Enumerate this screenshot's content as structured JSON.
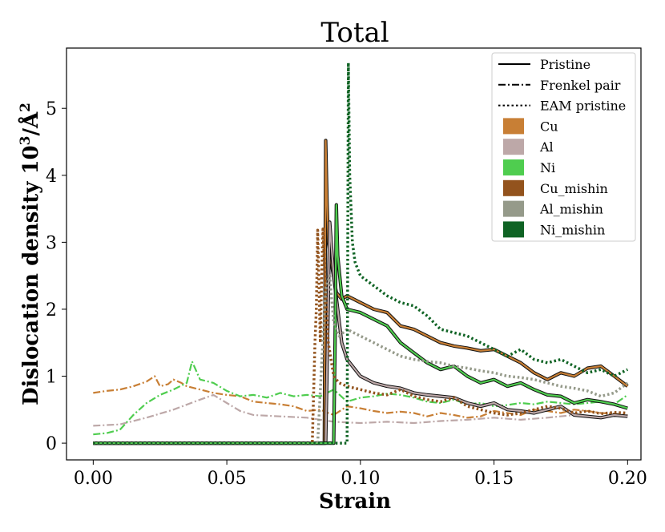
{
  "chart_data": {
    "type": "line",
    "title": "Total",
    "xlabel": "Strain",
    "ylabel": "Dislocation density 10³/Å²",
    "ylabel_base": "Dislocation density 10",
    "ylabel_exp1": "3",
    "ylabel_unit": "/Å",
    "ylabel_exp2": "2",
    "xlim": [
      -0.01,
      0.205
    ],
    "ylim": [
      -0.25,
      5.9
    ],
    "grid": false,
    "x_ticks": [
      0.0,
      0.05,
      0.1,
      0.15,
      0.2
    ],
    "x_tick_labels": [
      "0.00",
      "0.05",
      "0.10",
      "0.15",
      "0.20"
    ],
    "y_ticks": [
      0,
      1,
      2,
      3,
      4,
      5
    ],
    "y_tick_labels": [
      "0",
      "1",
      "2",
      "3",
      "4",
      "5"
    ],
    "legend_position": "top-right",
    "legend": {
      "styles": [
        {
          "label": "Pristine",
          "dash": "solid"
        },
        {
          "label": "Frenkel pair",
          "dash": "dashdot"
        },
        {
          "label": "EAM pristine",
          "dash": "dotted"
        }
      ],
      "materials": [
        {
          "label": "Cu",
          "color": "#c87f35"
        },
        {
          "label": "Al",
          "color": "#bda8a8"
        },
        {
          "label": "Ni",
          "color": "#4fcd4f"
        },
        {
          "label": "Cu_mishin",
          "color": "#93531d"
        },
        {
          "label": "Al_mishin",
          "color": "#959a8a"
        },
        {
          "label": "Ni_mishin",
          "color": "#0f6324"
        }
      ]
    },
    "series": [
      {
        "name": "Cu Frenkel pair",
        "material": "Cu",
        "style": "dashdot",
        "color": "#c87f35",
        "x": [
          0.0,
          0.005,
          0.01,
          0.015,
          0.02,
          0.023,
          0.025,
          0.028,
          0.03,
          0.033,
          0.035,
          0.04,
          0.045,
          0.05,
          0.055,
          0.06,
          0.065,
          0.07,
          0.075,
          0.08,
          0.085,
          0.088,
          0.09,
          0.095,
          0.1,
          0.105,
          0.11,
          0.115,
          0.12,
          0.125,
          0.13,
          0.135,
          0.14,
          0.145,
          0.15,
          0.155,
          0.16,
          0.165,
          0.17,
          0.175,
          0.18,
          0.185,
          0.19,
          0.195,
          0.2
        ],
        "y": [
          0.75,
          0.78,
          0.8,
          0.85,
          0.92,
          1.0,
          0.85,
          0.88,
          0.95,
          0.9,
          0.85,
          0.8,
          0.75,
          0.72,
          0.7,
          0.62,
          0.6,
          0.58,
          0.55,
          0.48,
          0.5,
          0.45,
          0.42,
          0.55,
          0.52,
          0.48,
          0.45,
          0.47,
          0.45,
          0.4,
          0.45,
          0.42,
          0.38,
          0.4,
          0.48,
          0.45,
          0.42,
          0.5,
          0.48,
          0.45,
          0.5,
          0.48,
          0.45,
          0.44,
          0.42
        ]
      },
      {
        "name": "Al Frenkel pair",
        "material": "Al",
        "style": "dashdot",
        "color": "#bda8a8",
        "x": [
          0.0,
          0.01,
          0.02,
          0.03,
          0.04,
          0.045,
          0.05,
          0.055,
          0.06,
          0.07,
          0.08,
          0.085,
          0.09,
          0.1,
          0.11,
          0.12,
          0.13,
          0.14,
          0.15,
          0.16,
          0.17,
          0.18,
          0.19,
          0.2
        ],
        "y": [
          0.26,
          0.28,
          0.38,
          0.5,
          0.65,
          0.72,
          0.6,
          0.48,
          0.42,
          0.4,
          0.38,
          0.35,
          0.32,
          0.3,
          0.32,
          0.3,
          0.33,
          0.35,
          0.38,
          0.35,
          0.38,
          0.42,
          0.38,
          0.42
        ]
      },
      {
        "name": "Ni Frenkel pair",
        "material": "Ni",
        "style": "dashdot",
        "color": "#4fcd4f",
        "x": [
          0.0,
          0.005,
          0.01,
          0.015,
          0.02,
          0.025,
          0.03,
          0.035,
          0.037,
          0.04,
          0.045,
          0.05,
          0.055,
          0.06,
          0.065,
          0.07,
          0.075,
          0.08,
          0.085,
          0.09,
          0.095,
          0.1,
          0.105,
          0.11,
          0.115,
          0.12,
          0.125,
          0.13,
          0.135,
          0.14,
          0.145,
          0.15,
          0.155,
          0.16,
          0.165,
          0.17,
          0.175,
          0.18,
          0.185,
          0.19,
          0.195,
          0.2
        ],
        "y": [
          0.13,
          0.15,
          0.2,
          0.42,
          0.6,
          0.72,
          0.8,
          0.9,
          1.22,
          0.95,
          0.9,
          0.78,
          0.7,
          0.72,
          0.68,
          0.75,
          0.7,
          0.72,
          0.7,
          0.8,
          0.62,
          0.68,
          0.7,
          0.74,
          0.72,
          0.68,
          0.62,
          0.6,
          0.65,
          0.58,
          0.6,
          0.55,
          0.57,
          0.6,
          0.58,
          0.62,
          0.6,
          0.58,
          0.6,
          0.62,
          0.58,
          0.72
        ]
      },
      {
        "name": "Cu Pristine",
        "material": "Cu",
        "style": "solid",
        "color": "#c87f35",
        "x": [
          0.0,
          0.08,
          0.085,
          0.0865,
          0.087,
          0.0875,
          0.088,
          0.0895,
          0.091,
          0.093,
          0.095,
          0.1,
          0.105,
          0.11,
          0.115,
          0.12,
          0.125,
          0.13,
          0.135,
          0.14,
          0.145,
          0.15,
          0.155,
          0.16,
          0.165,
          0.17,
          0.175,
          0.18,
          0.185,
          0.19,
          0.195,
          0.2
        ],
        "y": [
          0.0,
          0.0,
          0.0,
          0.0,
          4.52,
          3.6,
          3.0,
          2.6,
          2.25,
          2.15,
          2.2,
          2.1,
          2.0,
          1.95,
          1.75,
          1.7,
          1.6,
          1.5,
          1.45,
          1.42,
          1.38,
          1.4,
          1.3,
          1.2,
          1.05,
          0.95,
          1.05,
          1.0,
          1.12,
          1.15,
          1.0,
          0.85
        ]
      },
      {
        "name": "Al Pristine",
        "material": "Al",
        "style": "solid",
        "color": "#bda8a8",
        "x": [
          0.0,
          0.085,
          0.087,
          0.0885,
          0.09,
          0.093,
          0.095,
          0.1,
          0.105,
          0.11,
          0.115,
          0.12,
          0.125,
          0.13,
          0.135,
          0.14,
          0.145,
          0.15,
          0.155,
          0.16,
          0.165,
          0.17,
          0.175,
          0.18,
          0.185,
          0.19,
          0.195,
          0.2
        ],
        "y": [
          0.0,
          0.0,
          0.0,
          3.3,
          2.5,
          1.5,
          1.25,
          1.0,
          0.9,
          0.85,
          0.82,
          0.75,
          0.72,
          0.7,
          0.68,
          0.6,
          0.55,
          0.6,
          0.5,
          0.48,
          0.45,
          0.5,
          0.55,
          0.42,
          0.4,
          0.38,
          0.42,
          0.4
        ]
      },
      {
        "name": "Ni Pristine",
        "material": "Ni",
        "style": "solid",
        "color": "#4fcd4f",
        "x": [
          0.0,
          0.088,
          0.09,
          0.0905,
          0.091,
          0.0915,
          0.093,
          0.095,
          0.1,
          0.105,
          0.11,
          0.115,
          0.12,
          0.125,
          0.13,
          0.135,
          0.14,
          0.145,
          0.15,
          0.155,
          0.16,
          0.165,
          0.17,
          0.175,
          0.18,
          0.185,
          0.19,
          0.195,
          0.2
        ],
        "y": [
          0.0,
          0.0,
          0.0,
          1.5,
          3.56,
          2.8,
          2.2,
          2.0,
          1.95,
          1.85,
          1.75,
          1.5,
          1.35,
          1.2,
          1.1,
          1.15,
          1.0,
          0.9,
          0.95,
          0.85,
          0.9,
          0.8,
          0.72,
          0.7,
          0.6,
          0.65,
          0.62,
          0.58,
          0.52
        ]
      },
      {
        "name": "Cu_mishin EAM pristine",
        "material": "Cu_mishin",
        "style": "dotted",
        "color": "#93531d",
        "x": [
          0.0,
          0.08,
          0.082,
          0.083,
          0.0835,
          0.084,
          0.085,
          0.0855,
          0.086,
          0.087,
          0.088,
          0.09,
          0.092,
          0.095,
          0.1,
          0.105,
          0.11,
          0.115,
          0.12,
          0.125,
          0.13,
          0.135,
          0.14,
          0.145,
          0.15,
          0.155,
          0.16,
          0.165,
          0.17,
          0.175,
          0.18,
          0.185,
          0.19,
          0.195,
          0.2
        ],
        "y": [
          0.0,
          0.0,
          0.0,
          1.5,
          2.0,
          3.18,
          1.5,
          2.5,
          3.2,
          2.2,
          1.5,
          1.0,
          0.9,
          0.85,
          0.8,
          0.75,
          0.72,
          0.8,
          0.7,
          0.65,
          0.62,
          0.68,
          0.55,
          0.5,
          0.45,
          0.42,
          0.45,
          0.5,
          0.55,
          0.52,
          0.45,
          0.48,
          0.44,
          0.46,
          0.45
        ]
      },
      {
        "name": "Al_mishin EAM pristine",
        "material": "Al_mishin",
        "style": "dotted",
        "color": "#959a8a",
        "x": [
          0.0,
          0.08,
          0.084,
          0.0855,
          0.087,
          0.0885,
          0.09,
          0.092,
          0.095,
          0.1,
          0.105,
          0.11,
          0.115,
          0.12,
          0.125,
          0.13,
          0.135,
          0.14,
          0.145,
          0.15,
          0.155,
          0.16,
          0.165,
          0.17,
          0.175,
          0.18,
          0.185,
          0.19,
          0.195,
          0.2
        ],
        "y": [
          0.0,
          0.0,
          0.0,
          1.2,
          2.3,
          2.5,
          1.8,
          1.6,
          1.7,
          1.6,
          1.5,
          1.4,
          1.3,
          1.25,
          1.22,
          1.2,
          1.15,
          1.12,
          1.08,
          1.05,
          1.0,
          0.98,
          0.95,
          0.9,
          0.85,
          0.82,
          0.78,
          0.7,
          0.75,
          0.9
        ]
      },
      {
        "name": "Ni_mishin EAM pristine",
        "material": "Ni_mishin",
        "style": "dotted",
        "color": "#0f6324",
        "x": [
          0.0,
          0.092,
          0.094,
          0.095,
          0.0955,
          0.096,
          0.097,
          0.098,
          0.1,
          0.105,
          0.11,
          0.115,
          0.12,
          0.125,
          0.13,
          0.135,
          0.14,
          0.145,
          0.15,
          0.155,
          0.16,
          0.165,
          0.17,
          0.175,
          0.18,
          0.185,
          0.19,
          0.195,
          0.2
        ],
        "y": [
          0.0,
          0.0,
          0.0,
          0.0,
          5.68,
          4.0,
          3.0,
          2.7,
          2.5,
          2.35,
          2.2,
          2.1,
          2.05,
          1.9,
          1.7,
          1.65,
          1.6,
          1.5,
          1.4,
          1.3,
          1.4,
          1.25,
          1.2,
          1.25,
          1.15,
          1.05,
          1.1,
          1.0,
          1.1
        ]
      }
    ]
  }
}
